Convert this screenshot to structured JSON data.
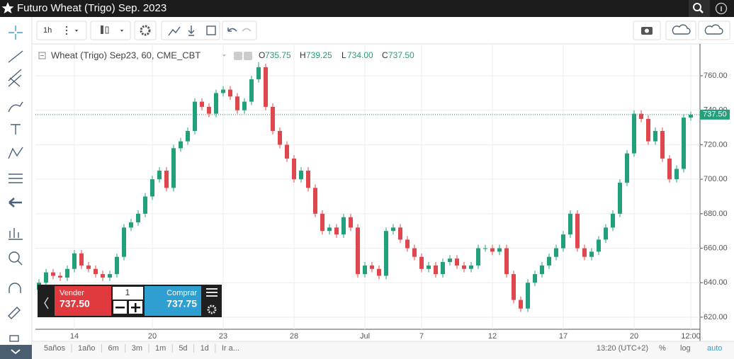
{
  "title_bar": {
    "title": "Futuro Wheat (Trigo) Sep. 2023"
  },
  "toolbar": {
    "interval": "1h"
  },
  "legend": {
    "symbol": "Wheat (Trigo) Sep23, 60, CME_CBT",
    "items": [
      {
        "label": "O",
        "value": "735.75"
      },
      {
        "label": "H",
        "value": "739.25"
      },
      {
        "label": "L",
        "value": "734.00"
      },
      {
        "label": "C",
        "value": "737.50"
      }
    ]
  },
  "chart_data": {
    "type": "candlestick",
    "categories": [
      null,
      null,
      null,
      null,
      null,
      "14",
      null,
      null,
      null,
      null,
      null,
      null,
      null,
      null,
      null,
      null,
      "20",
      null,
      null,
      null,
      null,
      null,
      null,
      null,
      null,
      null,
      "23",
      null,
      null,
      null,
      null,
      null,
      null,
      null,
      null,
      null,
      "28",
      null,
      null,
      null,
      null,
      null,
      null,
      null,
      null,
      null,
      "Jul",
      null,
      null,
      null,
      null,
      null,
      null,
      null,
      "7",
      null,
      null,
      null,
      null,
      null,
      null,
      null,
      null,
      null,
      "12",
      null,
      null,
      null,
      null,
      null,
      null,
      null,
      null,
      null,
      "17",
      null,
      null,
      null,
      null,
      null,
      null,
      null,
      null,
      null,
      "20",
      null,
      null,
      null,
      null,
      null,
      null,
      null,
      "12:00"
    ],
    "open": [
      636,
      640,
      646,
      644,
      643,
      648,
      657,
      650,
      648,
      645,
      643,
      645,
      655,
      672,
      675,
      680,
      690,
      700,
      705,
      695,
      718,
      722,
      728,
      745,
      742,
      738,
      750,
      752,
      748,
      740,
      745,
      758,
      765,
      742,
      728,
      720,
      712,
      700,
      705,
      695,
      680,
      670,
      672,
      668,
      678,
      672,
      645,
      650,
      648,
      644,
      670,
      672,
      665,
      660,
      655,
      648,
      650,
      645,
      652,
      654,
      650,
      648,
      650,
      660,
      660,
      658,
      660,
      645,
      630,
      625,
      640,
      645,
      650,
      655,
      660,
      668,
      680,
      660,
      655,
      658,
      665,
      672,
      680,
      698,
      715,
      738,
      735,
      722,
      728,
      712,
      700,
      706,
      735.75
    ],
    "high": [
      642,
      648,
      648,
      646,
      650,
      659,
      659,
      652,
      650,
      647,
      647,
      657,
      674,
      677,
      682,
      692,
      702,
      707,
      707,
      720,
      724,
      730,
      747,
      747,
      744,
      752,
      754,
      754,
      750,
      747,
      760,
      768,
      767,
      744,
      730,
      722,
      714,
      707,
      707,
      697,
      682,
      674,
      674,
      680,
      680,
      674,
      652,
      652,
      650,
      672,
      674,
      674,
      667,
      662,
      657,
      652,
      652,
      654,
      656,
      656,
      652,
      652,
      662,
      662,
      662,
      662,
      662,
      647,
      632,
      642,
      647,
      652,
      657,
      662,
      670,
      682,
      682,
      662,
      660,
      667,
      674,
      682,
      700,
      717,
      740,
      740,
      737,
      730,
      730,
      714,
      708,
      737.75,
      739.25
    ],
    "low": [
      634,
      638,
      642,
      641,
      641,
      646,
      648,
      646,
      643,
      641,
      641,
      643,
      653,
      670,
      673,
      678,
      688,
      698,
      693,
      693,
      716,
      720,
      726,
      740,
      736,
      736,
      748,
      746,
      738,
      738,
      743,
      756,
      740,
      726,
      718,
      710,
      698,
      698,
      693,
      678,
      668,
      668,
      666,
      666,
      670,
      643,
      643,
      646,
      642,
      642,
      668,
      663,
      658,
      653,
      646,
      646,
      643,
      643,
      650,
      648,
      646,
      646,
      648,
      658,
      656,
      656,
      643,
      628,
      623,
      623,
      638,
      643,
      648,
      653,
      658,
      666,
      658,
      653,
      653,
      656,
      663,
      670,
      678,
      696,
      713,
      733,
      720,
      720,
      710,
      698,
      698,
      704,
      734
    ],
    "close": [
      640,
      646,
      644,
      643,
      648,
      657,
      650,
      648,
      645,
      643,
      645,
      655,
      672,
      675,
      680,
      690,
      700,
      705,
      695,
      718,
      722,
      728,
      745,
      742,
      738,
      750,
      752,
      748,
      740,
      745,
      758,
      765,
      742,
      728,
      720,
      712,
      700,
      705,
      695,
      680,
      670,
      672,
      668,
      678,
      672,
      645,
      650,
      648,
      644,
      670,
      672,
      665,
      660,
      655,
      648,
      650,
      645,
      652,
      654,
      650,
      648,
      650,
      660,
      660,
      658,
      660,
      645,
      630,
      625,
      640,
      645,
      650,
      655,
      660,
      668,
      680,
      660,
      655,
      658,
      665,
      672,
      680,
      698,
      715,
      738,
      735,
      722,
      728,
      712,
      700,
      706,
      735.75,
      737.5
    ],
    "up_color": "#22a07c",
    "down_color": "#e0474c",
    "ylim": [
      613,
      778.5
    ],
    "yticks": [
      {
        "value": 620,
        "label": "620.00"
      },
      {
        "value": 640,
        "label": "640.00"
      },
      {
        "value": 660,
        "label": "660.00"
      },
      {
        "value": 680,
        "label": "680.00"
      },
      {
        "value": 700,
        "label": "700.00"
      },
      {
        "value": 720,
        "label": "720.00"
      },
      {
        "value": 740,
        "label": "740.00"
      },
      {
        "value": 760,
        "label": "760.00"
      }
    ],
    "grid": true,
    "last_price": {
      "value": 737.5,
      "label": "737.50"
    }
  },
  "trade_panel": {
    "sell_label": "Vender",
    "sell_price": "737.50",
    "quantity": "1",
    "buy_label": "Comprar",
    "buy_price": "737.75"
  },
  "bottom_bar": {
    "ranges": [
      "5años",
      "1año",
      "6m",
      "3m",
      "1m",
      "5d",
      "1d",
      "Ir a..."
    ],
    "time": "13:20 (UTC+2)",
    "percent": "%",
    "log": "log",
    "auto": "auto"
  }
}
